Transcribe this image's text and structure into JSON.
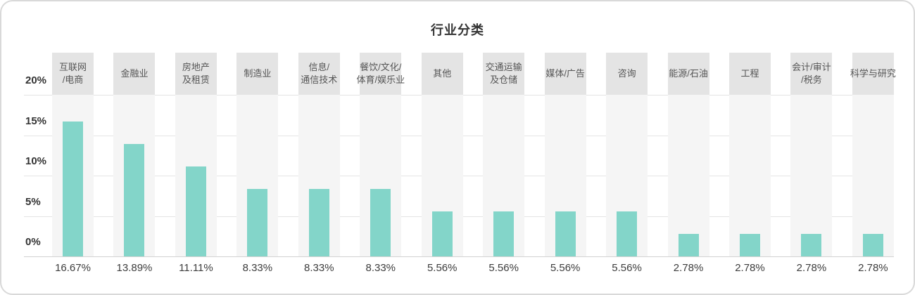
{
  "chart": {
    "title": "行业分类"
  },
  "chart_data": {
    "type": "bar",
    "title": "行业分类",
    "categories": [
      "互联网/电商",
      "金融业",
      "房地产及租赁",
      "制造业",
      "信息/通信技术",
      "餐饮/文化/体育/娱乐业",
      "其他",
      "交通运输及仓储",
      "媒体/广告",
      "咨询",
      "能源/石油",
      "工程",
      "会计/审计/税务",
      "科学与研究"
    ],
    "category_lines": [
      [
        "互联网",
        "/电商"
      ],
      [
        "金融业"
      ],
      [
        "房地产",
        "及租赁"
      ],
      [
        "制造业"
      ],
      [
        "信息/",
        "通信技术"
      ],
      [
        "餐饮/文化/",
        "体育/娱乐业"
      ],
      [
        "其他"
      ],
      [
        "交通运输",
        "及仓储"
      ],
      [
        "媒体/广告"
      ],
      [
        "咨询"
      ],
      [
        "能源/石油"
      ],
      [
        "工程"
      ],
      [
        "会计/审计",
        "/税务"
      ],
      [
        "科学与研究"
      ]
    ],
    "values": [
      16.67,
      13.89,
      11.11,
      8.33,
      8.33,
      8.33,
      5.56,
      5.56,
      5.56,
      5.56,
      2.78,
      2.78,
      2.78,
      2.78
    ],
    "value_labels": [
      "16.67%",
      "13.89%",
      "11.11%",
      "8.33%",
      "8.33%",
      "8.33%",
      "5.56%",
      "5.56%",
      "5.56%",
      "5.56%",
      "2.78%",
      "2.78%",
      "2.78%",
      "2.78%"
    ],
    "xlabel": "",
    "ylabel": "",
    "ylim": [
      0,
      20
    ],
    "yticks": {
      "values": [
        20,
        15,
        10,
        5,
        0
      ],
      "labels": [
        "20%",
        "15%",
        "10%",
        "5%",
        "0%"
      ]
    },
    "grid": true,
    "legend": "none",
    "colors": {
      "bar": "#83d5c9",
      "column_band": "#f5f5f5",
      "category_header_bg": "#e4e4e4",
      "gridline": "#e4e4e4",
      "axis_line": "#d2d2d2",
      "title_text": "#333333",
      "tick_text": "#333333",
      "value_text": "#3d3d3d",
      "category_text": "#555555",
      "card_border": "#d9d9d9",
      "background": "#ffffff"
    }
  }
}
